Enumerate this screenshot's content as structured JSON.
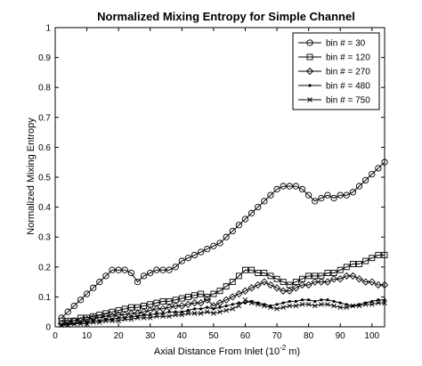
{
  "chart_data": {
    "type": "line",
    "title": "Normalized Mixing Entropy for Simple Channel",
    "xlabel": "Axial Distance From Inlet",
    "xlabel_unit_base": "(10",
    "xlabel_unit_exp": "-2",
    "xlabel_unit_end": " m)",
    "ylabel": "Normalized Mixing Entropy",
    "xlim": [
      0,
      104
    ],
    "ylim": [
      0,
      1
    ],
    "xticks": [
      "0",
      "10",
      "20",
      "30",
      "40",
      "50",
      "60",
      "70",
      "80",
      "90",
      "100"
    ],
    "yticks": [
      "0",
      "0.1",
      "0.2",
      "0.3",
      "0.4",
      "0.5",
      "0.6",
      "0.7",
      "0.8",
      "0.9",
      "1"
    ],
    "grid": false,
    "legend_position": "top-right",
    "series": [
      {
        "name": "bin # = 30",
        "marker": "circle",
        "x": [
          2,
          4,
          6,
          8,
          10,
          12,
          14,
          16,
          18,
          20,
          22,
          24,
          26,
          28,
          30,
          32,
          34,
          36,
          38,
          40,
          42,
          44,
          46,
          48,
          50,
          52,
          54,
          56,
          58,
          60,
          62,
          64,
          66,
          68,
          70,
          72,
          74,
          76,
          78,
          80,
          82,
          84,
          86,
          88,
          90,
          92,
          94,
          96,
          98,
          100,
          102,
          104
        ],
        "y": [
          0.03,
          0.05,
          0.07,
          0.09,
          0.11,
          0.13,
          0.15,
          0.17,
          0.19,
          0.19,
          0.19,
          0.18,
          0.15,
          0.17,
          0.18,
          0.19,
          0.19,
          0.19,
          0.2,
          0.22,
          0.23,
          0.24,
          0.25,
          0.26,
          0.27,
          0.28,
          0.3,
          0.32,
          0.34,
          0.36,
          0.38,
          0.4,
          0.42,
          0.44,
          0.46,
          0.47,
          0.47,
          0.47,
          0.46,
          0.44,
          0.42,
          0.43,
          0.44,
          0.43,
          0.44,
          0.44,
          0.45,
          0.47,
          0.49,
          0.51,
          0.53,
          0.55
        ]
      },
      {
        "name": "bin # = 120",
        "marker": "square",
        "x": [
          2,
          4,
          6,
          8,
          10,
          12,
          14,
          16,
          18,
          20,
          22,
          24,
          26,
          28,
          30,
          32,
          34,
          36,
          38,
          40,
          42,
          44,
          46,
          48,
          50,
          52,
          54,
          56,
          58,
          60,
          62,
          64,
          66,
          68,
          70,
          72,
          74,
          76,
          78,
          80,
          82,
          84,
          86,
          88,
          90,
          92,
          94,
          96,
          98,
          100,
          102,
          104
        ],
        "y": [
          0.02,
          0.02,
          0.02,
          0.03,
          0.03,
          0.035,
          0.04,
          0.045,
          0.05,
          0.055,
          0.06,
          0.065,
          0.065,
          0.07,
          0.075,
          0.08,
          0.085,
          0.085,
          0.09,
          0.095,
          0.1,
          0.105,
          0.11,
          0.1,
          0.11,
          0.12,
          0.135,
          0.15,
          0.17,
          0.19,
          0.19,
          0.18,
          0.18,
          0.17,
          0.16,
          0.15,
          0.14,
          0.15,
          0.16,
          0.17,
          0.17,
          0.17,
          0.18,
          0.18,
          0.19,
          0.2,
          0.21,
          0.21,
          0.22,
          0.23,
          0.24,
          0.24
        ]
      },
      {
        "name": "bin # = 270",
        "marker": "diamond",
        "x": [
          2,
          4,
          6,
          8,
          10,
          12,
          14,
          16,
          18,
          20,
          22,
          24,
          26,
          28,
          30,
          32,
          34,
          36,
          38,
          40,
          42,
          44,
          46,
          48,
          50,
          52,
          54,
          56,
          58,
          60,
          62,
          64,
          66,
          68,
          70,
          72,
          74,
          76,
          78,
          80,
          82,
          84,
          86,
          88,
          90,
          92,
          94,
          96,
          98,
          100,
          102,
          104
        ],
        "y": [
          0.01,
          0.015,
          0.02,
          0.02,
          0.025,
          0.03,
          0.03,
          0.035,
          0.035,
          0.04,
          0.04,
          0.045,
          0.045,
          0.05,
          0.055,
          0.06,
          0.06,
          0.065,
          0.07,
          0.07,
          0.075,
          0.08,
          0.08,
          0.09,
          0.07,
          0.08,
          0.09,
          0.1,
          0.11,
          0.12,
          0.13,
          0.14,
          0.15,
          0.14,
          0.13,
          0.12,
          0.12,
          0.13,
          0.14,
          0.14,
          0.15,
          0.15,
          0.15,
          0.16,
          0.16,
          0.17,
          0.17,
          0.16,
          0.15,
          0.15,
          0.14,
          0.14
        ]
      },
      {
        "name": "bin # = 480",
        "marker": "dot",
        "x": [
          2,
          4,
          6,
          8,
          10,
          12,
          14,
          16,
          18,
          20,
          22,
          24,
          26,
          28,
          30,
          32,
          34,
          36,
          38,
          40,
          42,
          44,
          46,
          48,
          50,
          52,
          54,
          56,
          58,
          60,
          62,
          64,
          66,
          68,
          70,
          72,
          74,
          76,
          78,
          80,
          82,
          84,
          86,
          88,
          90,
          92,
          94,
          96,
          98,
          100,
          102,
          104
        ],
        "y": [
          0.005,
          0.01,
          0.01,
          0.015,
          0.015,
          0.02,
          0.02,
          0.025,
          0.025,
          0.03,
          0.03,
          0.035,
          0.035,
          0.04,
          0.04,
          0.045,
          0.045,
          0.05,
          0.05,
          0.05,
          0.055,
          0.06,
          0.06,
          0.065,
          0.06,
          0.065,
          0.07,
          0.075,
          0.08,
          0.08,
          0.085,
          0.08,
          0.075,
          0.07,
          0.075,
          0.08,
          0.085,
          0.085,
          0.09,
          0.09,
          0.085,
          0.09,
          0.09,
          0.085,
          0.08,
          0.075,
          0.07,
          0.075,
          0.08,
          0.085,
          0.09,
          0.09
        ]
      },
      {
        "name": "bin # = 750",
        "marker": "x",
        "x": [
          2,
          4,
          6,
          8,
          10,
          12,
          14,
          16,
          18,
          20,
          22,
          24,
          26,
          28,
          30,
          32,
          34,
          36,
          38,
          40,
          42,
          44,
          46,
          48,
          50,
          52,
          54,
          56,
          58,
          60,
          62,
          64,
          66,
          68,
          70,
          72,
          74,
          76,
          78,
          80,
          82,
          84,
          86,
          88,
          90,
          92,
          94,
          96,
          98,
          100,
          102,
          104
        ],
        "y": [
          0.005,
          0.005,
          0.01,
          0.01,
          0.01,
          0.015,
          0.015,
          0.02,
          0.02,
          0.02,
          0.025,
          0.025,
          0.03,
          0.03,
          0.03,
          0.035,
          0.035,
          0.035,
          0.04,
          0.04,
          0.045,
          0.045,
          0.045,
          0.05,
          0.045,
          0.05,
          0.055,
          0.06,
          0.07,
          0.09,
          0.08,
          0.075,
          0.07,
          0.065,
          0.06,
          0.065,
          0.07,
          0.07,
          0.075,
          0.075,
          0.07,
          0.075,
          0.075,
          0.07,
          0.065,
          0.065,
          0.07,
          0.07,
          0.075,
          0.075,
          0.08,
          0.08
        ]
      }
    ]
  }
}
